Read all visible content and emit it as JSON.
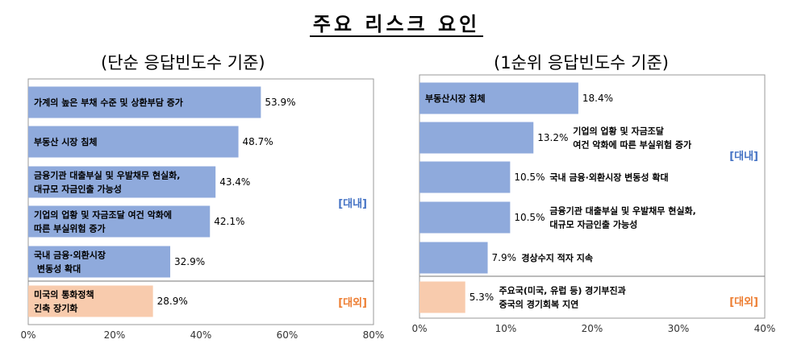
{
  "title": "주요 리스크 요인",
  "colors": {
    "domestic": "#8faadc",
    "external": "#f8cbad",
    "domestic_text": "#4472c4",
    "external_text": "#ed7d31"
  },
  "chart_data": [
    {
      "type": "bar",
      "orientation": "horizontal",
      "title": "(단순 응답빈도수 기준)",
      "xlim": [
        0,
        80
      ],
      "xticks": [
        "0%",
        "20%",
        "40%",
        "60%",
        "80%"
      ],
      "groups": {
        "domestic": "[대내]",
        "external": "[대외]"
      },
      "bars": [
        {
          "label": [
            "가계의 높은 부채 수준 및 상환부담 증가"
          ],
          "value": 53.9,
          "display": "53.9%",
          "group": "domestic"
        },
        {
          "label": [
            "부동산 시장 침체"
          ],
          "value": 48.7,
          "display": "48.7%",
          "group": "domestic"
        },
        {
          "label": [
            "금융기관 대출부실 및 우발채무 현실화,",
            "대규모 자금인출 가능성"
          ],
          "value": 43.4,
          "display": "43.4%",
          "group": "domestic"
        },
        {
          "label": [
            "기업의 업황 및 자금조달 여건 악화에",
            "따른 부실위험 증가"
          ],
          "value": 42.1,
          "display": "42.1%",
          "group": "domestic"
        },
        {
          "label": [
            "국내 금융·외환시장",
            " 변동성 확대"
          ],
          "value": 32.9,
          "display": "32.9%",
          "group": "domestic"
        },
        {
          "label": [
            "미국의 통화정책",
            "긴축 장기화"
          ],
          "value": 28.9,
          "display": "28.9%",
          "group": "external"
        }
      ]
    },
    {
      "type": "bar",
      "orientation": "horizontal",
      "title": "(1순위 응답빈도수 기준)",
      "xlim": [
        0,
        40
      ],
      "xticks": [
        "0%",
        "10%",
        "20%",
        "30%",
        "40%"
      ],
      "groups": {
        "domestic": "[대내]",
        "external": "[대외]"
      },
      "bars": [
        {
          "label": [
            "부동산시장 침체"
          ],
          "value": 18.4,
          "display": "18.4%",
          "group": "domestic"
        },
        {
          "label": [
            "기업의 업황 및 자금조달",
            "여건 악화에 따른 부실위험 증가"
          ],
          "value": 13.2,
          "display": "13.2%",
          "group": "domestic"
        },
        {
          "label": [
            "국내 금융·외환시장 변동성 확대"
          ],
          "value": 10.5,
          "display": "10.5%",
          "group": "domestic"
        },
        {
          "label": [
            "금융기관 대출부실 및 우발채무 현실화,",
            "대규모 자금인출 가능성"
          ],
          "value": 10.5,
          "display": "10.5%",
          "group": "domestic"
        },
        {
          "label": [
            "경상수지 적자 지속"
          ],
          "value": 7.9,
          "display": "7.9%",
          "group": "domestic"
        },
        {
          "label": [
            "주요국(미국, 유럽 등) 경기부진과",
            "중국의 경기회복 지연"
          ],
          "value": 5.3,
          "display": "5.3%",
          "group": "external"
        }
      ]
    }
  ]
}
